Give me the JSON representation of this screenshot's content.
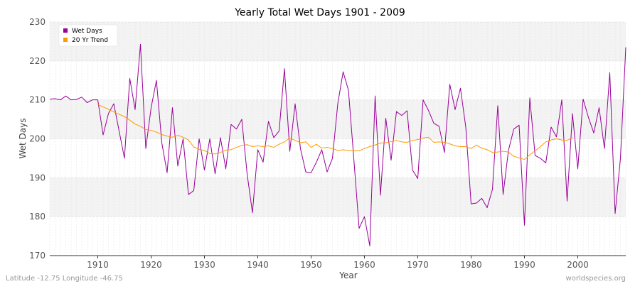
{
  "chart_data": {
    "type": "line",
    "title": "Yearly Total Wet Days 1901 - 2009",
    "xlabel": "Year",
    "ylabel": "Wet Days",
    "xlim": [
      1901,
      2009
    ],
    "ylim": [
      170,
      230
    ],
    "xticks": [
      1910,
      1920,
      1930,
      1940,
      1950,
      1960,
      1970,
      1980,
      1990,
      2000
    ],
    "yticks": [
      170,
      180,
      190,
      200,
      210,
      220,
      230
    ],
    "legend_position": "top-left",
    "footer_left": "Latitude -12.75 Longitude -46.75",
    "footer_right": "worldspecies.org",
    "series": [
      {
        "name": "Wet Days",
        "color": "#990099",
        "x_start": 1901,
        "values": [
          210.2,
          210.3,
          210.0,
          211.0,
          210.0,
          210.1,
          210.7,
          209.3,
          210.0,
          210.0,
          201.0,
          206.5,
          209.0,
          202.0,
          195.0,
          215.5,
          207.5,
          224.3,
          197.5,
          208.0,
          215.0,
          199.0,
          191.3,
          208.0,
          193.0,
          200.0,
          185.7,
          186.7,
          200.0,
          192.0,
          200.0,
          191.0,
          200.3,
          192.3,
          203.7,
          202.5,
          205.0,
          191.0,
          181.0,
          197.2,
          194.0,
          204.5,
          200.3,
          202.0,
          218.0,
          196.8,
          209.0,
          197.5,
          191.5,
          191.3,
          194.0,
          197.2,
          191.5,
          195.0,
          209.0,
          217.2,
          212.5,
          195.0,
          177.0,
          180.0,
          172.5,
          211.0,
          185.5,
          205.3,
          194.5,
          207.0,
          206.0,
          207.2,
          192.0,
          189.8,
          210.0,
          207.3,
          204.0,
          203.2,
          196.5,
          214.0,
          207.5,
          213.0,
          203.0,
          183.3,
          183.5,
          184.7,
          182.3,
          187.0,
          208.5,
          185.7,
          197.0,
          202.5,
          203.5,
          177.8,
          210.5,
          195.7,
          195.0,
          193.8,
          203.0,
          200.5,
          210.0,
          184.0,
          206.5,
          192.3,
          210.2,
          205.5,
          201.5,
          208.0,
          197.5,
          217.0,
          180.8,
          195.0,
          223.5
        ]
      },
      {
        "name": "20 Yr Trend",
        "color": "#ff9900",
        "x_start": 1910,
        "values": [
          208.8,
          208.2,
          207.6,
          206.9,
          206.3,
          205.7,
          204.8,
          203.8,
          203.2,
          202.4,
          202.2,
          201.7,
          201.1,
          200.7,
          200.4,
          200.9,
          200.4,
          199.7,
          197.9,
          197.3,
          197.0,
          196.2,
          196.1,
          196.5,
          197.1,
          197.2,
          197.8,
          198.3,
          198.5,
          198.0,
          198.2,
          198.0,
          198.2,
          197.8,
          198.6,
          199.2,
          200.2,
          199.6,
          199.0,
          199.2,
          197.8,
          198.6,
          197.6,
          197.8,
          197.5,
          197.0,
          197.2,
          197.0,
          197.0,
          196.9,
          197.5,
          198.0,
          198.4,
          198.9,
          199.0,
          199.3,
          199.6,
          199.2,
          199.1,
          199.6,
          199.8,
          200.2,
          200.4,
          199.1,
          199.2,
          199.1,
          198.7,
          198.2,
          198.0,
          198.0,
          197.5,
          198.4,
          197.6,
          197.2,
          196.5,
          196.6,
          196.8,
          196.6,
          195.5,
          195.1,
          194.7,
          195.9,
          196.9,
          198.0,
          199.2,
          199.7,
          200.0,
          199.7,
          199.6,
          200.3
        ]
      }
    ]
  }
}
